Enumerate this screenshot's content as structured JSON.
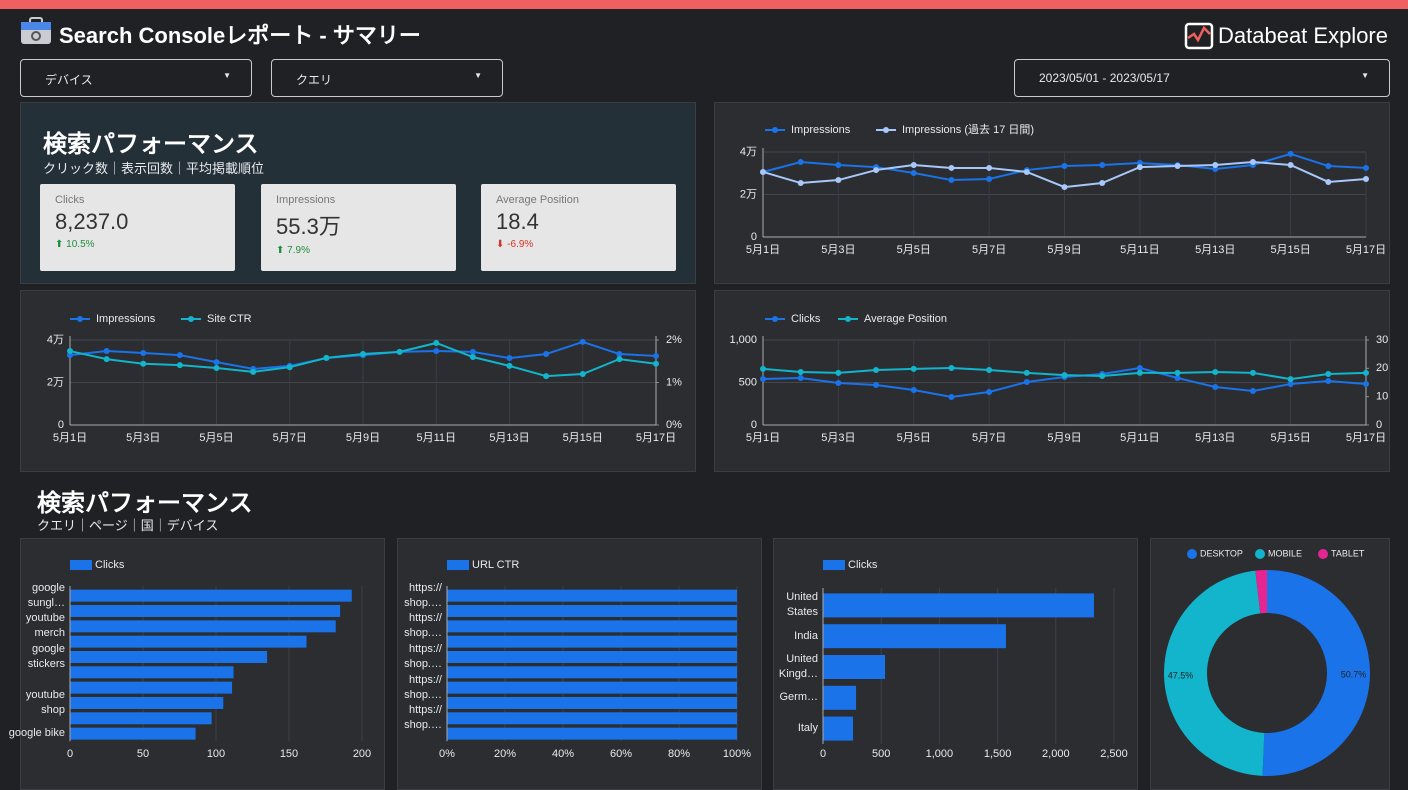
{
  "header": {
    "title": "Search Consoleレポート - サマリー",
    "logo": "Databeat Explore"
  },
  "filters": [
    "デバイス",
    "クエリ",
    "2023/05/01 - 2023/05/17"
  ],
  "section1": {
    "title": "検索パフォーマンス",
    "subtitle": "クリック数｜表示回数｜平均掲載順位"
  },
  "scorecards": [
    {
      "label": "Clicks",
      "value": "8,237.0",
      "change": "10.5%"
    },
    {
      "label": "Impressions",
      "value": "55.3万",
      "change": "7.9%"
    },
    {
      "label": "Average Position",
      "value": "18.4",
      "change": "-6.9%"
    }
  ],
  "section2": {
    "title": "検索パフォーマンス",
    "subtitle": "クエリ｜ページ｜国｜デバイス"
  },
  "chart_data": [
    {
      "type": "line",
      "categories": [
        "5月1日",
        null,
        "5月3日",
        null,
        "5月5日",
        null,
        "5月7日",
        null,
        "5月9日",
        null,
        "5月11日",
        null,
        "5月13日",
        null,
        "5月15日",
        null,
        "5月17日"
      ],
      "series": [
        {
          "name": "Impressions",
          "color": "#1a73e8",
          "values": [
            30600,
            35300,
            33900,
            32900,
            30100,
            26800,
            27300,
            31500,
            33400,
            33900,
            34800,
            33900,
            32000,
            33900,
            39100,
            33400,
            32500
          ]
        },
        {
          "name": "Impressions (過去 17 日間)",
          "color": "#a8c7fa",
          "values": [
            30600,
            25400,
            26800,
            31500,
            33900,
            32500,
            32500,
            30600,
            23500,
            25400,
            32900,
            33400,
            33900,
            35300,
            33900,
            25900,
            27300
          ]
        }
      ],
      "ylim": [
        0,
        40000
      ],
      "yticks": [
        0,
        {
          "value": 20000,
          "label": "2万"
        },
        {
          "value": 40000,
          "label": "4万"
        }
      ],
      "grid": true
    },
    {
      "type": "line",
      "categories": [
        "5月1日",
        null,
        "5月3日",
        null,
        "5月5日",
        null,
        "5月7日",
        null,
        "5月9日",
        null,
        "5月11日",
        null,
        "5月13日",
        null,
        "5月15日",
        null,
        "5月17日"
      ],
      "series": [
        {
          "name": "Impressions",
          "color": "#1a73e8",
          "values": [
            32900,
            34800,
            33900,
            32900,
            29600,
            26400,
            27800,
            31500,
            32900,
            34400,
            34800,
            34400,
            31500,
            33400,
            39100,
            33400,
            32500
          ]
        },
        {
          "name": "Site CTR",
          "color": "#12b5cb",
          "axis": "y2",
          "values": [
            1.74,
            1.55,
            1.44,
            1.41,
            1.34,
            1.25,
            1.36,
            1.58,
            1.67,
            1.72,
            1.93,
            1.6,
            1.39,
            1.15,
            1.2,
            1.55,
            1.44
          ]
        }
      ],
      "ylim": [
        0,
        40000
      ],
      "yticks": [
        0,
        {
          "value": 20000,
          "label": "2万"
        },
        {
          "value": 40000,
          "label": "4万"
        }
      ],
      "y2lim": [
        0,
        2
      ],
      "y2ticks": [
        {
          "value": 0,
          "label": "0%"
        },
        {
          "value": 1,
          "label": "1%"
        },
        {
          "value": 2,
          "label": "2%"
        }
      ],
      "grid": true
    },
    {
      "type": "line",
      "categories": [
        "5月1日",
        null,
        "5月3日",
        null,
        "5月5日",
        null,
        "5月7日",
        null,
        "5月9日",
        null,
        "5月11日",
        null,
        "5月13日",
        null,
        "5月15日",
        null,
        "5月17日"
      ],
      "series": [
        {
          "name": "Clicks",
          "color": "#1a73e8",
          "values": [
            541,
            553,
            494,
            471,
            412,
            329,
            388,
            506,
            565,
            600,
            671,
            553,
            447,
            400,
            482,
            518,
            482
          ]
        },
        {
          "name": "Average Position",
          "color": "#12b5cb",
          "axis": "y2",
          "values": [
            19.8,
            18.7,
            18.4,
            19.4,
            19.8,
            20.1,
            19.4,
            18.4,
            17.6,
            17.3,
            18.4,
            18.4,
            18.7,
            18.4,
            16.2,
            18.0,
            18.4
          ]
        }
      ],
      "ylim": [
        0,
        1000
      ],
      "yticks": [
        0,
        500,
        {
          "value": 1000,
          "label": "1,000"
        }
      ],
      "y2lim": [
        0,
        30
      ],
      "y2ticks": [
        0,
        10,
        20,
        30
      ],
      "grid": true
    },
    {
      "type": "hbar",
      "categories": [
        "google sungl…",
        null,
        "youtube merch",
        null,
        "google stickers",
        null,
        null,
        "youtube shop",
        null,
        "google bike"
      ],
      "series": [
        {
          "name": "Clicks",
          "color": "#1a73e8",
          "values": [
            193,
            185,
            182,
            162,
            135,
            112,
            111,
            105,
            97,
            86
          ]
        }
      ],
      "xlim": [
        0,
        211
      ],
      "xticks": [
        0,
        50,
        100,
        150,
        200
      ],
      "grid": true
    },
    {
      "type": "hbar",
      "categories": [
        "https:// shop.…",
        null,
        "https:// shop.…",
        null,
        "https:// shop.…",
        null,
        "https:// shop.…",
        null,
        "https:// shop.…",
        null
      ],
      "series": [
        {
          "name": "URL CTR",
          "color": "#1a73e8",
          "values": [
            100,
            100,
            100,
            100,
            100,
            100,
            100,
            100,
            100,
            100
          ]
        }
      ],
      "xlim": [
        0,
        100
      ],
      "xticks": [
        {
          "value": 0,
          "label": "0%"
        },
        {
          "value": 20,
          "label": "20%"
        },
        {
          "value": 40,
          "label": "40%"
        },
        {
          "value": 60,
          "label": "60%"
        },
        {
          "value": 80,
          "label": "80%"
        },
        {
          "value": 100,
          "label": "100%"
        }
      ],
      "grid": true
    },
    {
      "type": "hbar",
      "categories": [
        "United States",
        "India",
        "United Kingd…",
        "Germ…",
        "Italy"
      ],
      "series": [
        {
          "name": "Clicks",
          "color": "#1a73e8",
          "values": [
            2328,
            1572,
            533,
            284,
            258
          ]
        }
      ],
      "xlim": [
        0,
        2600
      ],
      "xticks": [
        0,
        500,
        {
          "value": 1000,
          "label": "1,000"
        },
        {
          "value": 1500,
          "label": "1,500"
        },
        {
          "value": 2000,
          "label": "2,000"
        },
        {
          "value": 2500,
          "label": "2,500"
        }
      ],
      "grid": true
    },
    {
      "type": "donut",
      "categories": [
        "DESKTOP",
        "MOBILE",
        "TABLET"
      ],
      "values": [
        50.7,
        47.5,
        1.8
      ],
      "value_labels": [
        "50.7%",
        "47.5%",
        null
      ],
      "colors": [
        "#1a73e8",
        "#12b5cb",
        "#e52592"
      ]
    }
  ]
}
